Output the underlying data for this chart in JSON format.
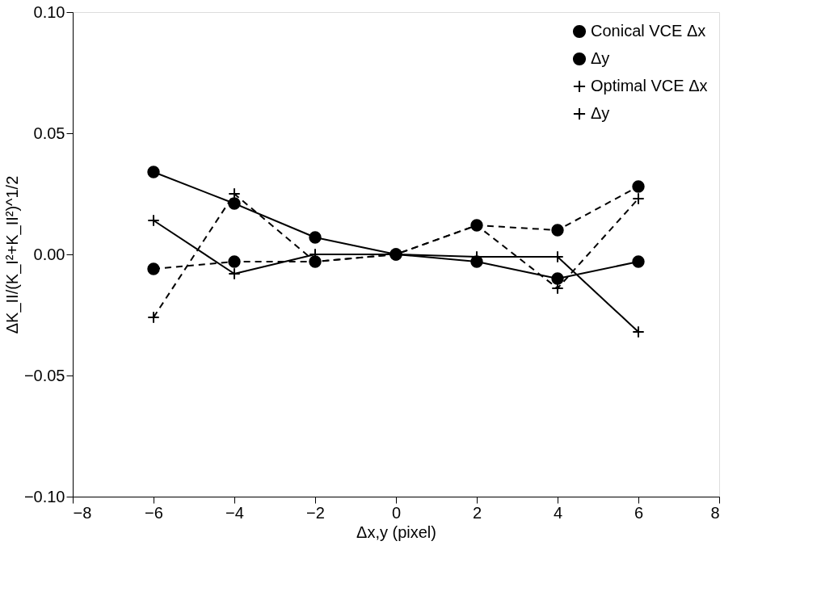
{
  "chart_data": {
    "type": "line",
    "xlabel": "Δx,y (pixel)",
    "ylabel": "ΔK_II/(K_I²+K_II²)^1/2",
    "x": [
      -6,
      -4,
      -2,
      0,
      2,
      4,
      6
    ],
    "xlim": [
      -8,
      8
    ],
    "xticks": [
      {
        "value": -8,
        "label": "−8"
      },
      {
        "value": -6,
        "label": "−6"
      },
      {
        "value": -4,
        "label": "−4"
      },
      {
        "value": -2,
        "label": "−2"
      },
      0,
      2,
      4,
      6,
      8
    ],
    "ylim": [
      -0.1,
      0.1
    ],
    "yticks": [
      {
        "value": -0.1,
        "label": "−0.10"
      },
      {
        "value": -0.05,
        "label": "−0.05"
      },
      {
        "value": 0,
        "label": "0.00"
      },
      {
        "value": 0.05,
        "label": "0.05"
      },
      {
        "value": 0.1,
        "label": "0.10"
      }
    ],
    "grid": false,
    "legend": "top right",
    "series": [
      {
        "name": "Conical VCE Δx",
        "color": "#000000",
        "marker": "circle",
        "line_style": "solid",
        "values": [
          0.034,
          0.021,
          0.007,
          0,
          -0.003,
          -0.01,
          -0.003
        ]
      },
      {
        "name": "Δy",
        "color": "#000000",
        "marker": "circle",
        "line_style": "dashed",
        "values": [
          -0.006,
          -0.003,
          -0.003,
          0,
          0.012,
          0.01,
          0.028
        ]
      },
      {
        "name": "Optimal VCE Δx",
        "color": "#000000",
        "marker": "cross",
        "line_style": "solid",
        "values": [
          0.014,
          -0.008,
          0.0,
          0,
          -0.001,
          -0.001,
          -0.032
        ]
      },
      {
        "name": "Δy",
        "color": "#000000",
        "marker": "cross",
        "line_style": "dashed",
        "values": [
          -0.026,
          0.025,
          -0.003,
          0,
          0.012,
          -0.014,
          0.023
        ]
      }
    ]
  }
}
